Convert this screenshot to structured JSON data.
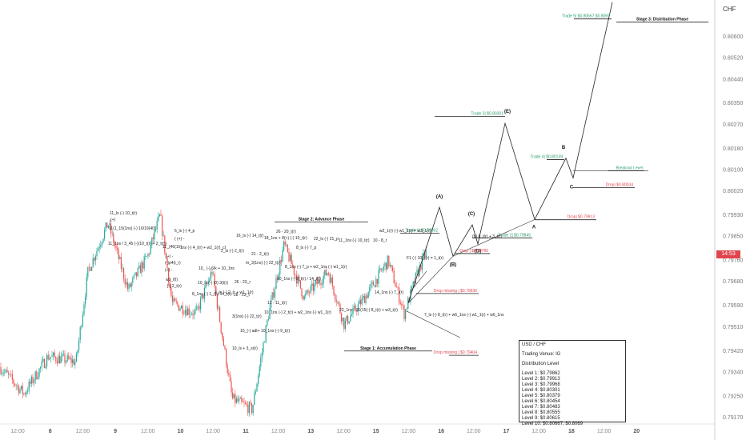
{
  "axis": {
    "currency": "CHF"
  },
  "current_price": {
    "label": "14:53",
    "color": "#e0454f"
  },
  "chart_data": {
    "type": "candlestick",
    "y_ticks": [
      0.7917,
      0.7925,
      0.7934,
      0.7942,
      0.7951,
      0.7959,
      0.7968,
      0.7976,
      0.7985,
      0.7993,
      0.8002,
      0.801,
      0.8018,
      0.8027,
      0.8035,
      0.8044,
      0.8052,
      0.806
    ],
    "ylim": [
      0.7913,
      0.8066
    ],
    "x_ticks": [
      "12:00",
      "8",
      "12:00",
      "9",
      "12:00",
      "10",
      "12:00",
      "11",
      "12:00",
      "13",
      "12:00",
      "15",
      "12:00",
      "16",
      "12:00",
      "17",
      "12:00",
      "18",
      "12:00",
      "20"
    ],
    "day_ticks": [
      "8",
      "9",
      "10",
      "11",
      "13",
      "15",
      "16",
      "17",
      "18",
      "20"
    ],
    "up_color": "#26a69a",
    "down_color": "#ef5350",
    "phases": [
      {
        "label": "Stage 1: Accumulation Phase"
      },
      {
        "label": "Stage 2: Advance Phase"
      },
      {
        "label": "Stage 3: Distribution Phase"
      }
    ],
    "levels": [
      {
        "label": "Trade 5| $0.80667,$0.8069",
        "price": 0.80667,
        "color": "#2a9d6a"
      },
      {
        "label": "Trade 3| $0.80301",
        "price": 0.80301,
        "color": "#2a9d6a"
      },
      {
        "label": "Trade 4| $0.80139",
        "price": 0.80139,
        "color": "#2a9d6a"
      },
      {
        "label": "Breakout Level",
        "price": 0.80097,
        "color": "#2a9d6a"
      },
      {
        "label": "Drop| $0.80034",
        "price": 0.80034,
        "color": "#e0454f"
      },
      {
        "label": "Trade 1| $0.79862",
        "price": 0.79862,
        "color": "#2a9d6a"
      },
      {
        "label": "Trade 2| $0.79845",
        "price": 0.79845,
        "color": "#2a9d6a"
      },
      {
        "label": "Drop| $0.79913",
        "price": 0.79913,
        "color": "#e0454f"
      },
      {
        "label": "Drop | $0.79786",
        "price": 0.79786,
        "color": "#e0454f"
      },
      {
        "label": "Drop missing | $0.79636",
        "price": 0.79636,
        "color": "#e0454f"
      },
      {
        "label": "Drop missing | $0.79404",
        "price": 0.79404,
        "color": "#e0454f"
      }
    ],
    "wave_labels": [
      "(A)",
      "(B)",
      "(C)",
      "(D)",
      "(E)",
      "A",
      "B",
      "C"
    ],
    "annotations": [
      "11_ls (-) 10_t(r)",
      "(+)",
      "11(1_15(1ns) (-) 10/19(40)",
      "11_1ns / 3_45 (-)(10_t(r) + 2_t(r))",
      "6_ls (-) 4_p",
      "( (+) -",
      "11_(46(1h)",
      "1ns (-) 4_t(r) + w2_1(r)_cl",
      "(+) -",
      "(-)p4(t_r)",
      "(+) -",
      "w3_f(l)",
      "[-] 2_t(r)",
      "2_ls (-) 2_t(r)",
      "10_ (-) 6/k + 10_1ns",
      "16_ls (-) 14_t(r)",
      "18_1ns + 8(+) (-) 10_t(r)",
      "26 - 23_r",
      "21 - 2_t(r)",
      "10_ls (-) (0) 3(t(r)",
      "8_1ns (-) 1_(|-) 14_t(r)",
      "m_3(1ns) (-) 22_t(r)",
      "3_ls (-) 2_(r + w1_1(r)",
      "28 - 23_t",
      "26 - 20_t(r)",
      "8_ls (-) 7_p",
      "22_ls (-) 21_p",
      "11_1ns (-) 10_t(r)",
      "10 - 8_r",
      "12 - 11_t(r)",
      "10_1ns (-) 2_t(r) + w2_1ns (-) w1_1(r)",
      "3(1ns) (-) 22_t(r)",
      "10_(-) adt+ 10_1ns (-) 9_t(r)",
      "10_ls + 3_si(r)",
      "8_1ns (-) 7_p + w2_1ns (-) w1_1(r)",
      "10_1ns (-) 8_t(r) / 14_t(r)",
      "22_1ns / 15(15(-) 8_t(r) + w3_t(r)",
      "14_1ns (-) 7_t(r)",
      "w2_1(r) (-) w1_1(r) = w3_1(r)",
      "F1 (-) 10_t(r) = 1_t(r)",
      "(b) 8_t(r) + 3_t(r)",
      "7_ls (-) 8_t(r) + w6_1ns (-) w1_1(r) + w6_1ns"
    ]
  },
  "info_box": {
    "title": "USD / CHF",
    "venue": "Trading Venue: IG",
    "heading": "Distribution Level",
    "levels": [
      "Level 1: $0.79862",
      "Level 2: $0.79913",
      "Level 3: $0.79968",
      "Level 4: $0.80301",
      "Level 5: $0.80379",
      "Level 6: $0.80454",
      "Level 7: $0.80483",
      "Level 8: $0.80555",
      "Level 9: $0.80615",
      "Level 10: $0.80667, $0.8069"
    ]
  }
}
